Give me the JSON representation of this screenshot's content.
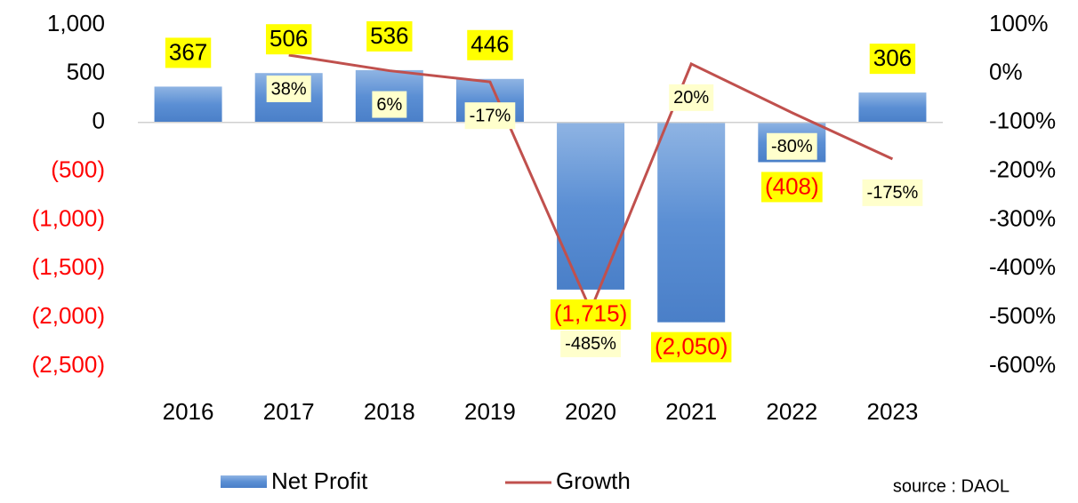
{
  "chart_data": {
    "type": "bar_line",
    "categories": [
      "2016",
      "2017",
      "2018",
      "2019",
      "2020",
      "2021",
      "2022",
      "2023"
    ],
    "series": [
      {
        "name": "Net Profit",
        "type": "bar",
        "color": "#5b8fd4",
        "values": [
          367,
          506,
          536,
          446,
          -1715,
          -2050,
          -408,
          306
        ],
        "value_labels": [
          "367",
          "506",
          "536",
          "446",
          "(1,715)",
          "(2,050)",
          "(408)",
          "306"
        ]
      },
      {
        "name": "Growth",
        "type": "line",
        "axis": "y2",
        "color": "#c0504d",
        "values": [
          null,
          38,
          6,
          -17,
          -485,
          20,
          -80,
          -175
        ],
        "value_labels": [
          null,
          "38%",
          "6%",
          "-17%",
          "-485%",
          "20%",
          "-80%",
          "-175%"
        ]
      }
    ],
    "ylim": [
      -2500,
      1000
    ],
    "yticks": [
      {
        "value": 1000,
        "label": "1,000"
      },
      500,
      0,
      {
        "value": -500,
        "label": "(500)"
      },
      {
        "value": -1000,
        "label": "(1,000)"
      },
      {
        "value": -1500,
        "label": "(1,500)"
      },
      {
        "value": -2000,
        "label": "(2,000)"
      },
      {
        "value": -2500,
        "label": "(2,500)"
      }
    ],
    "y2lim": [
      -600,
      100
    ],
    "y2ticks": [
      {
        "value": 100,
        "label": "100%"
      },
      {
        "value": 0,
        "label": "0%"
      },
      {
        "value": -100,
        "label": "-100%"
      },
      {
        "value": -200,
        "label": "-200%"
      },
      {
        "value": -300,
        "label": "-300%"
      },
      {
        "value": -400,
        "label": "-400%"
      },
      {
        "value": -500,
        "label": "-500%"
      },
      {
        "value": -600,
        "label": "-600%"
      }
    ],
    "negative_color": "#ff0000",
    "legend": "bottom",
    "annotation": "source : DAOL"
  }
}
